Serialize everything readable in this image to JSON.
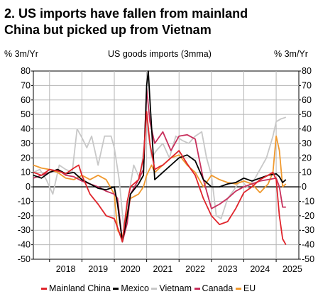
{
  "title_line1": "2. US imports have fallen from mainland",
  "title_line2": "China but picked up from Vietnam",
  "left_unit": "% 3m/Yr",
  "right_unit": "% 3m/Yr",
  "colors": {
    "china": "#e0242b",
    "mexico": "#000000",
    "vietnam": "#c8c8c8",
    "canada": "#c8305c",
    "eu": "#f0992e"
  },
  "chart_data": {
    "type": "line",
    "title": "US goods imports (3mma)",
    "ylabel_left": "% 3m/Yr",
    "ylabel_right": "% 3m/Yr",
    "ylim": [
      -50,
      80
    ],
    "yticks": [
      "80",
      "70",
      "60",
      "50",
      "40",
      "30",
      "20",
      "10",
      "0",
      "-10",
      "-20",
      "-30",
      "-40",
      "-50"
    ],
    "xlim": [
      2017.5,
      2025.7
    ],
    "xticks": [
      "2018",
      "2019",
      "2020",
      "2021",
      "2022",
      "2023",
      "2024",
      "2025"
    ],
    "grid": true,
    "legend_position": "bottom",
    "series": [
      {
        "name": "Mainland China",
        "color": "#e0242b",
        "x": [
          2017.5,
          2017.75,
          2018.0,
          2018.25,
          2018.5,
          2018.75,
          2018.9,
          2019.0,
          2019.25,
          2019.5,
          2019.75,
          2020.0,
          2020.1,
          2020.25,
          2020.4,
          2020.5,
          2020.75,
          2020.9,
          2021.0,
          2021.1,
          2021.25,
          2021.4,
          2021.5,
          2021.75,
          2022.0,
          2022.25,
          2022.5,
          2022.75,
          2023.0,
          2023.25,
          2023.5,
          2023.75,
          2024.0,
          2024.25,
          2024.5,
          2024.75,
          2024.9,
          2025.0,
          2025.1,
          2025.2,
          2025.3
        ],
        "values": [
          10,
          8,
          12,
          11,
          9,
          13,
          15,
          8,
          -5,
          -12,
          -20,
          -22,
          -28,
          -38,
          -10,
          0,
          5,
          20,
          52,
          30,
          12,
          14,
          15,
          20,
          25,
          16,
          8,
          -8,
          -20,
          -26,
          -24,
          -15,
          -4,
          0,
          5,
          8,
          10,
          5,
          -20,
          -36,
          -40
        ]
      },
      {
        "name": "Mexico",
        "color": "#000000",
        "x": [
          2017.5,
          2017.75,
          2018.0,
          2018.25,
          2018.5,
          2018.75,
          2019.0,
          2019.25,
          2019.5,
          2019.75,
          2020.0,
          2020.1,
          2020.25,
          2020.4,
          2020.5,
          2020.75,
          2020.9,
          2021.0,
          2021.05,
          2021.1,
          2021.25,
          2021.5,
          2021.75,
          2022.0,
          2022.25,
          2022.5,
          2022.75,
          2023.0,
          2023.25,
          2023.5,
          2023.75,
          2024.0,
          2024.25,
          2024.5,
          2024.75,
          2025.0,
          2025.1,
          2025.2,
          2025.3
        ],
        "values": [
          8,
          6,
          10,
          12,
          9,
          10,
          5,
          2,
          -1,
          -2,
          0,
          -12,
          -38,
          -20,
          -5,
          2,
          8,
          70,
          80,
          60,
          5,
          10,
          15,
          20,
          22,
          18,
          5,
          0,
          0,
          2,
          3,
          6,
          4,
          6,
          8,
          9,
          7,
          3,
          5
        ]
      },
      {
        "name": "Vietnam",
        "color": "#c8c8c8",
        "x": [
          2017.5,
          2017.7,
          2017.9,
          2018.1,
          2018.3,
          2018.5,
          2018.7,
          2018.85,
          2019.0,
          2019.15,
          2019.3,
          2019.5,
          2019.7,
          2019.9,
          2020.0,
          2020.15,
          2020.3,
          2020.45,
          2020.6,
          2020.8,
          2021.0,
          2021.15,
          2021.3,
          2021.5,
          2021.7,
          2021.9,
          2022.1,
          2022.3,
          2022.5,
          2022.7,
          2022.85,
          2023.0,
          2023.15,
          2023.3,
          2023.5,
          2023.7,
          2023.9,
          2024.1,
          2024.3,
          2024.5,
          2024.7,
          2024.9,
          2025.0,
          2025.15,
          2025.3
        ],
        "values": [
          10,
          12,
          5,
          -5,
          15,
          12,
          10,
          40,
          34,
          27,
          35,
          15,
          35,
          35,
          27,
          5,
          -30,
          -5,
          15,
          5,
          45,
          20,
          25,
          30,
          20,
          35,
          32,
          30,
          35,
          38,
          20,
          8,
          -20,
          -22,
          -8,
          -2,
          5,
          0,
          4,
          12,
          20,
          35,
          45,
          47,
          48
        ]
      },
      {
        "name": "Canada",
        "color": "#c8305c",
        "x": [
          2017.5,
          2017.75,
          2018.0,
          2018.25,
          2018.5,
          2018.75,
          2019.0,
          2019.25,
          2019.5,
          2019.75,
          2020.0,
          2020.1,
          2020.25,
          2020.4,
          2020.5,
          2020.75,
          2020.9,
          2021.0,
          2021.1,
          2021.25,
          2021.5,
          2021.75,
          2022.0,
          2022.25,
          2022.5,
          2022.75,
          2023.0,
          2023.25,
          2023.5,
          2023.75,
          2024.0,
          2024.25,
          2024.5,
          2024.75,
          2025.0,
          2025.1,
          2025.2,
          2025.3
        ],
        "values": [
          6,
          8,
          10,
          12,
          8,
          7,
          4,
          2,
          0,
          -3,
          -5,
          -8,
          -38,
          -25,
          -5,
          5,
          12,
          68,
          45,
          30,
          38,
          25,
          35,
          36,
          33,
          5,
          -15,
          -12,
          -8,
          -3,
          0,
          2,
          4,
          5,
          6,
          0,
          -14,
          -14
        ]
      },
      {
        "name": "EU",
        "color": "#f0992e",
        "x": [
          2017.5,
          2017.75,
          2018.0,
          2018.25,
          2018.5,
          2018.75,
          2019.0,
          2019.25,
          2019.5,
          2019.75,
          2020.0,
          2020.1,
          2020.25,
          2020.4,
          2020.5,
          2020.75,
          2020.9,
          2021.0,
          2021.15,
          2021.25,
          2021.5,
          2021.75,
          2022.0,
          2022.25,
          2022.5,
          2022.75,
          2023.0,
          2023.25,
          2023.5,
          2023.75,
          2024.0,
          2024.25,
          2024.5,
          2024.75,
          2024.9,
          2025.0,
          2025.1,
          2025.2,
          2025.3
        ],
        "values": [
          15,
          13,
          12,
          10,
          6,
          5,
          8,
          5,
          8,
          5,
          -5,
          -30,
          -35,
          -18,
          -8,
          -5,
          0,
          8,
          15,
          10,
          15,
          20,
          22,
          15,
          10,
          0,
          8,
          5,
          3,
          2,
          4,
          2,
          -4,
          2,
          10,
          35,
          25,
          0,
          2
        ]
      }
    ]
  },
  "legend": {
    "china": "Mainland China",
    "mexico": "Mexico",
    "vietnam": "Vietnam",
    "canada": "Canada",
    "eu": "EU"
  }
}
